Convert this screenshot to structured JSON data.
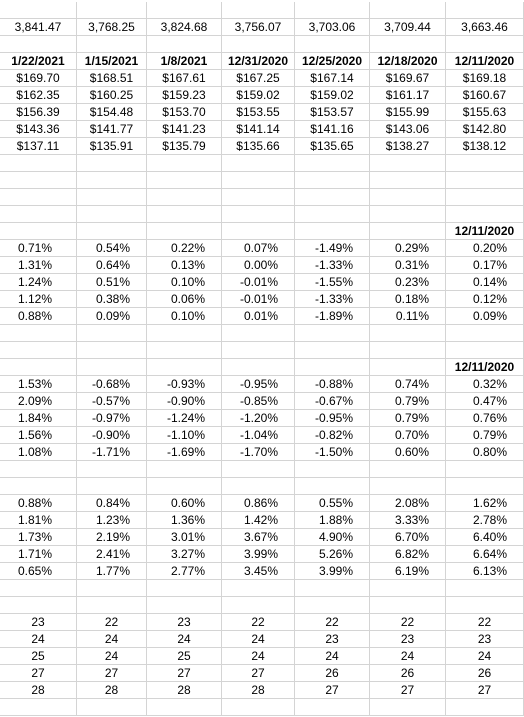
{
  "spreadsheet": {
    "index_levels": [
      "3,841.47",
      "3,768.25",
      "3,824.68",
      "3,756.07",
      "3,703.06",
      "3,709.44",
      "3,663.46"
    ],
    "dates": [
      "1/22/2021",
      "1/15/2021",
      "1/8/2021",
      "12/31/2020",
      "12/25/2020",
      "12/18/2020",
      "12/11/2020"
    ],
    "prices": [
      [
        "$169.70",
        "$168.51",
        "$167.61",
        "$167.25",
        "$167.14",
        "$169.67",
        "$169.18"
      ],
      [
        "$162.35",
        "$160.25",
        "$159.23",
        "$159.02",
        "$159.02",
        "$161.17",
        "$160.67"
      ],
      [
        "$156.39",
        "$154.48",
        "$153.70",
        "$153.55",
        "$153.57",
        "$155.99",
        "$155.63"
      ],
      [
        "$143.36",
        "$141.77",
        "$141.23",
        "$141.14",
        "$141.16",
        "$143.06",
        "$142.80"
      ],
      [
        "$137.11",
        "$135.91",
        "$135.79",
        "$135.66",
        "$135.65",
        "$138.27",
        "$138.12"
      ]
    ],
    "block2": {
      "date_header": "12/11/2020",
      "rows": [
        [
          "0.71%",
          "0.54%",
          "0.22%",
          "0.07%",
          "-1.49%",
          "0.29%",
          "0.20%"
        ],
        [
          "1.31%",
          "0.64%",
          "0.13%",
          "0.00%",
          "-1.33%",
          "0.31%",
          "0.17%"
        ],
        [
          "1.24%",
          "0.51%",
          "0.10%",
          "-0.01%",
          "-1.55%",
          "0.23%",
          "0.14%"
        ],
        [
          "1.12%",
          "0.38%",
          "0.06%",
          "-0.01%",
          "-1.33%",
          "0.18%",
          "0.12%"
        ],
        [
          "0.88%",
          "0.09%",
          "0.10%",
          "0.01%",
          "-1.89%",
          "0.11%",
          "0.09%"
        ]
      ]
    },
    "block3": {
      "date_header": "12/11/2020",
      "rows": [
        [
          "1.53%",
          "-0.68%",
          "-0.93%",
          "-0.95%",
          "-0.88%",
          "0.74%",
          "0.32%"
        ],
        [
          "2.09%",
          "-0.57%",
          "-0.90%",
          "-0.85%",
          "-0.67%",
          "0.79%",
          "0.47%"
        ],
        [
          "1.84%",
          "-0.97%",
          "-1.24%",
          "-1.20%",
          "-0.95%",
          "0.79%",
          "0.76%"
        ],
        [
          "1.56%",
          "-0.90%",
          "-1.10%",
          "-1.04%",
          "-0.82%",
          "0.70%",
          "0.79%"
        ],
        [
          "1.08%",
          "-1.71%",
          "-1.69%",
          "-1.70%",
          "-1.50%",
          "0.60%",
          "0.80%"
        ]
      ]
    },
    "block4": {
      "rows": [
        [
          "0.88%",
          "0.84%",
          "0.60%",
          "0.86%",
          "0.55%",
          "2.08%",
          "1.62%"
        ],
        [
          "1.81%",
          "1.23%",
          "1.36%",
          "1.42%",
          "1.88%",
          "3.33%",
          "2.78%"
        ],
        [
          "1.73%",
          "2.19%",
          "3.01%",
          "3.67%",
          "4.90%",
          "6.70%",
          "6.40%"
        ],
        [
          "1.71%",
          "2.41%",
          "3.27%",
          "3.99%",
          "5.26%",
          "6.82%",
          "6.64%"
        ],
        [
          "0.65%",
          "1.77%",
          "2.77%",
          "3.45%",
          "3.99%",
          "6.19%",
          "6.13%"
        ]
      ]
    },
    "block5": {
      "rows": [
        [
          "23",
          "22",
          "23",
          "22",
          "22",
          "22",
          "22"
        ],
        [
          "24",
          "24",
          "24",
          "24",
          "23",
          "23",
          "23"
        ],
        [
          "25",
          "24",
          "25",
          "24",
          "24",
          "24",
          "24"
        ],
        [
          "27",
          "27",
          "27",
          "27",
          "26",
          "26",
          "26"
        ],
        [
          "28",
          "28",
          "28",
          "28",
          "27",
          "27",
          "27"
        ]
      ]
    }
  }
}
